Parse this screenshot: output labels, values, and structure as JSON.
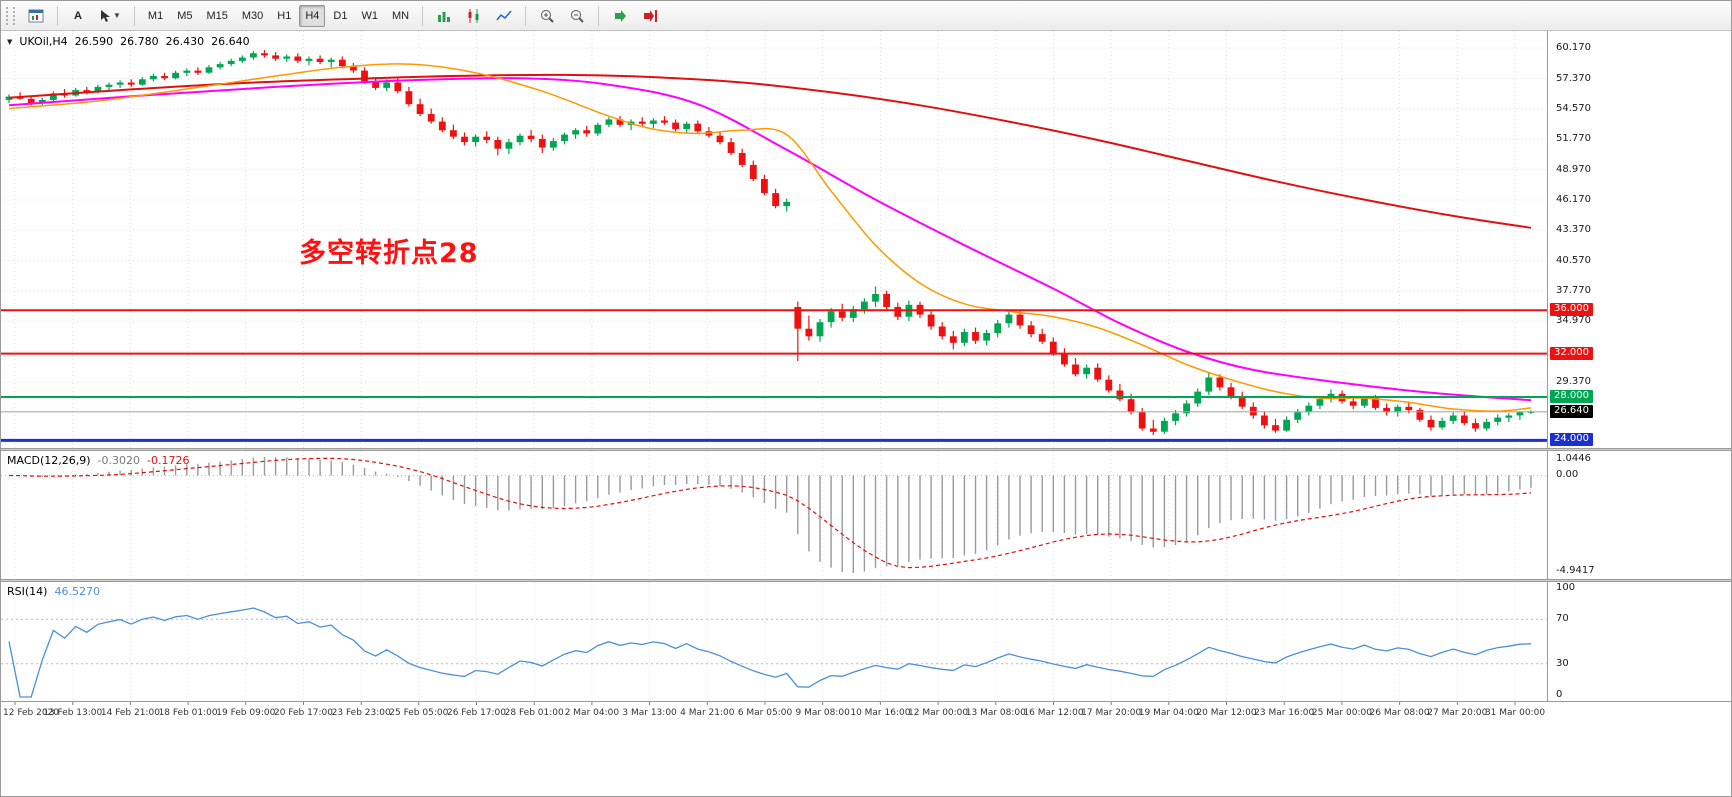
{
  "toolbar": {
    "text_tool": "A",
    "timeframes": [
      "M1",
      "M5",
      "M15",
      "M30",
      "H1",
      "H4",
      "D1",
      "W1",
      "MN"
    ],
    "active_timeframe": "H4"
  },
  "chart_data": {
    "type": "candlestick",
    "symbol_label": "UKOil,H4",
    "ohlc_label": {
      "open": "26.590",
      "high": "26.780",
      "low": "26.430",
      "close": "26.640"
    },
    "annotation": {
      "text": "多空转折点28",
      "color": "#ff1111"
    },
    "up_color": "#00a651",
    "down_color": "#ee1111",
    "y_axis": {
      "min": 23.3,
      "max": 61.75,
      "tick_step": 2.8,
      "ticks": [
        60.17,
        57.37,
        54.57,
        51.77,
        48.97,
        46.17,
        43.37,
        40.57,
        37.77,
        34.97,
        32.17,
        29.37,
        26.57,
        23.77
      ]
    },
    "levels": [
      {
        "price": 36.0,
        "label": "36.000",
        "color": "#ee1111",
        "width": 2
      },
      {
        "price": 32.0,
        "label": "32.000",
        "color": "#ee1111",
        "width": 2
      },
      {
        "price": 28.0,
        "label": "28.000",
        "color": "#00a651",
        "width": 2
      },
      {
        "price": 24.0,
        "label": "24.000",
        "color": "#1c2fd0",
        "width": 3
      }
    ],
    "bid": {
      "price": 26.64,
      "label": "26.640",
      "line_color": "#a8a8a8",
      "label_bg": "#000000"
    },
    "moving_averages": [
      {
        "name": "ma-slow-red",
        "color": "#e01010",
        "width": 2,
        "points": [
          [
            0,
            55.6
          ],
          [
            10,
            56.3
          ],
          [
            20,
            56.9
          ],
          [
            30,
            57.3
          ],
          [
            40,
            57.6
          ],
          [
            50,
            57.7
          ],
          [
            58,
            57.5
          ],
          [
            66,
            57.0
          ],
          [
            74,
            56.1
          ],
          [
            82,
            54.9
          ],
          [
            90,
            53.4
          ],
          [
            98,
            51.7
          ],
          [
            106,
            49.8
          ],
          [
            114,
            47.9
          ],
          [
            122,
            46.2
          ],
          [
            130,
            44.7
          ],
          [
            137,
            43.6
          ]
        ]
      },
      {
        "name": "ma-medium-magenta",
        "color": "#ff00ff",
        "width": 2,
        "points": [
          [
            0,
            54.9
          ],
          [
            12,
            55.8
          ],
          [
            24,
            56.6
          ],
          [
            36,
            57.2
          ],
          [
            46,
            57.4
          ],
          [
            54,
            56.8
          ],
          [
            62,
            55.0
          ],
          [
            70,
            50.8
          ],
          [
            78,
            46.2
          ],
          [
            86,
            42.0
          ],
          [
            94,
            38.0
          ],
          [
            100,
            34.8
          ],
          [
            106,
            32.2
          ],
          [
            112,
            30.5
          ],
          [
            120,
            29.3
          ],
          [
            128,
            28.4
          ],
          [
            137,
            27.7
          ]
        ]
      },
      {
        "name": "ma-fast-orange",
        "color": "#ff9900",
        "width": 1.5,
        "points": [
          [
            0,
            54.6
          ],
          [
            8,
            55.3
          ],
          [
            16,
            56.4
          ],
          [
            24,
            57.6
          ],
          [
            30,
            58.4
          ],
          [
            36,
            58.7
          ],
          [
            42,
            57.9
          ],
          [
            48,
            56.2
          ],
          [
            54,
            53.9
          ],
          [
            58,
            52.7
          ],
          [
            62,
            52.3
          ],
          [
            66,
            52.6
          ],
          [
            70,
            52.2
          ],
          [
            74,
            47.0
          ],
          [
            78,
            42.0
          ],
          [
            82,
            38.5
          ],
          [
            86,
            36.6
          ],
          [
            90,
            35.9
          ],
          [
            94,
            35.4
          ],
          [
            98,
            34.4
          ],
          [
            102,
            32.8
          ],
          [
            106,
            31.0
          ],
          [
            110,
            29.6
          ],
          [
            114,
            28.5
          ],
          [
            118,
            27.9
          ],
          [
            122,
            27.9
          ],
          [
            126,
            27.5
          ],
          [
            130,
            26.9
          ],
          [
            134,
            26.7
          ],
          [
            137,
            27.0
          ]
        ]
      }
    ],
    "candles": [
      [
        55.4,
        55.9,
        55.1,
        55.7
      ],
      [
        55.7,
        56.1,
        55.4,
        55.5
      ],
      [
        55.5,
        55.8,
        54.9,
        55.1
      ],
      [
        55.1,
        55.6,
        54.8,
        55.4
      ],
      [
        55.4,
        56.2,
        55.2,
        56.0
      ],
      [
        56.0,
        56.4,
        55.6,
        55.8
      ],
      [
        55.8,
        56.5,
        55.7,
        56.3
      ],
      [
        56.3,
        56.6,
        55.9,
        56.1
      ],
      [
        56.1,
        56.8,
        56.0,
        56.6
      ],
      [
        56.6,
        57.0,
        56.3,
        56.8
      ],
      [
        56.8,
        57.2,
        56.5,
        57.0
      ],
      [
        57.0,
        57.3,
        56.6,
        56.8
      ],
      [
        56.8,
        57.5,
        56.7,
        57.3
      ],
      [
        57.3,
        57.8,
        57.1,
        57.6
      ],
      [
        57.6,
        57.9,
        57.2,
        57.4
      ],
      [
        57.4,
        58.1,
        57.3,
        57.9
      ],
      [
        57.9,
        58.3,
        57.6,
        58.1
      ],
      [
        58.1,
        58.4,
        57.7,
        57.9
      ],
      [
        57.9,
        58.6,
        57.8,
        58.4
      ],
      [
        58.4,
        58.9,
        58.2,
        58.7
      ],
      [
        58.7,
        59.2,
        58.5,
        59.0
      ],
      [
        59.0,
        59.5,
        58.8,
        59.3
      ],
      [
        59.3,
        59.9,
        59.1,
        59.7
      ],
      [
        59.7,
        60.0,
        59.3,
        59.5
      ],
      [
        59.5,
        59.8,
        59.0,
        59.2
      ],
      [
        59.2,
        59.6,
        58.9,
        59.4
      ],
      [
        59.4,
        59.7,
        58.8,
        59.0
      ],
      [
        59.0,
        59.4,
        58.6,
        59.2
      ],
      [
        59.2,
        59.5,
        58.7,
        58.9
      ],
      [
        58.9,
        59.3,
        58.4,
        59.1
      ],
      [
        59.1,
        59.4,
        58.3,
        58.5
      ],
      [
        58.5,
        58.8,
        57.9,
        58.1
      ],
      [
        58.1,
        58.4,
        56.9,
        57.1
      ],
      [
        57.1,
        57.5,
        56.3,
        56.5
      ],
      [
        56.5,
        57.3,
        56.2,
        57.0
      ],
      [
        57.0,
        57.4,
        56.0,
        56.2
      ],
      [
        56.2,
        56.6,
        54.8,
        55.0
      ],
      [
        55.0,
        55.5,
        53.9,
        54.1
      ],
      [
        54.1,
        54.6,
        53.2,
        53.4
      ],
      [
        53.4,
        53.8,
        52.4,
        52.6
      ],
      [
        52.6,
        53.1,
        51.8,
        52.0
      ],
      [
        52.0,
        52.4,
        51.2,
        51.5
      ],
      [
        51.5,
        52.2,
        51.1,
        52.0
      ],
      [
        52.0,
        52.5,
        51.4,
        51.7
      ],
      [
        51.7,
        52.0,
        50.3,
        50.9
      ],
      [
        50.9,
        51.8,
        50.4,
        51.5
      ],
      [
        51.5,
        52.3,
        51.2,
        52.1
      ],
      [
        52.1,
        52.6,
        51.5,
        51.8
      ],
      [
        51.8,
        52.2,
        50.5,
        51.0
      ],
      [
        51.0,
        51.9,
        50.7,
        51.6
      ],
      [
        51.6,
        52.4,
        51.3,
        52.2
      ],
      [
        52.2,
        52.8,
        51.8,
        52.6
      ],
      [
        52.6,
        53.0,
        52.0,
        52.3
      ],
      [
        52.3,
        53.3,
        52.1,
        53.1
      ],
      [
        53.1,
        53.8,
        52.9,
        53.6
      ],
      [
        53.6,
        53.9,
        52.9,
        53.1
      ],
      [
        53.1,
        53.6,
        52.6,
        53.4
      ],
      [
        53.4,
        53.8,
        53.0,
        53.2
      ],
      [
        53.2,
        53.7,
        52.8,
        53.5
      ],
      [
        53.5,
        53.9,
        53.1,
        53.3
      ],
      [
        53.3,
        53.6,
        52.5,
        52.7
      ],
      [
        52.7,
        53.4,
        52.4,
        53.2
      ],
      [
        53.2,
        53.5,
        52.3,
        52.5
      ],
      [
        52.5,
        52.9,
        51.9,
        52.1
      ],
      [
        52.1,
        52.5,
        51.3,
        51.5
      ],
      [
        51.5,
        51.9,
        50.3,
        50.5
      ],
      [
        50.5,
        50.9,
        49.2,
        49.4
      ],
      [
        49.4,
        49.8,
        47.9,
        48.1
      ],
      [
        48.1,
        48.5,
        46.6,
        46.8
      ],
      [
        46.8,
        47.2,
        45.4,
        45.6
      ],
      [
        45.6,
        46.3,
        45.1,
        46.0
      ],
      [
        36.3,
        36.8,
        31.3,
        34.3
      ],
      [
        34.3,
        35.5,
        33.2,
        33.6
      ],
      [
        33.6,
        35.2,
        33.1,
        34.9
      ],
      [
        34.9,
        36.2,
        34.4,
        35.9
      ],
      [
        35.9,
        36.6,
        35.0,
        35.3
      ],
      [
        35.3,
        36.4,
        34.9,
        36.1
      ],
      [
        36.1,
        37.1,
        35.7,
        36.8
      ],
      [
        36.8,
        38.2,
        36.3,
        37.5
      ],
      [
        37.5,
        37.8,
        36.0,
        36.3
      ],
      [
        36.3,
        36.7,
        35.1,
        35.4
      ],
      [
        35.4,
        36.9,
        35.0,
        36.5
      ],
      [
        36.5,
        36.8,
        35.3,
        35.6
      ],
      [
        35.6,
        35.9,
        34.2,
        34.5
      ],
      [
        34.5,
        34.9,
        33.3,
        33.6
      ],
      [
        33.6,
        34.1,
        32.4,
        33.0
      ],
      [
        33.0,
        34.3,
        32.7,
        34.0
      ],
      [
        34.0,
        34.4,
        32.9,
        33.2
      ],
      [
        33.2,
        34.2,
        32.8,
        33.9
      ],
      [
        33.9,
        35.1,
        33.5,
        34.8
      ],
      [
        34.8,
        36.0,
        34.4,
        35.6
      ],
      [
        35.6,
        35.9,
        34.3,
        34.6
      ],
      [
        34.6,
        35.0,
        33.5,
        33.8
      ],
      [
        33.8,
        34.3,
        32.9,
        33.1
      ],
      [
        33.1,
        33.5,
        31.8,
        32.0
      ],
      [
        32.0,
        32.5,
        30.8,
        31.0
      ],
      [
        31.0,
        31.6,
        29.9,
        30.1
      ],
      [
        30.1,
        31.0,
        29.7,
        30.7
      ],
      [
        30.7,
        31.1,
        29.4,
        29.6
      ],
      [
        29.6,
        30.0,
        28.4,
        28.6
      ],
      [
        28.6,
        29.2,
        27.6,
        27.8
      ],
      [
        27.8,
        28.3,
        26.4,
        26.6
      ],
      [
        26.6,
        27.0,
        24.9,
        25.1
      ],
      [
        25.1,
        25.9,
        24.5,
        24.8
      ],
      [
        24.8,
        26.1,
        24.6,
        25.8
      ],
      [
        25.8,
        26.8,
        25.4,
        26.5
      ],
      [
        26.5,
        27.7,
        26.2,
        27.4
      ],
      [
        27.4,
        28.8,
        27.1,
        28.5
      ],
      [
        28.5,
        30.3,
        28.2,
        29.8
      ],
      [
        29.8,
        30.1,
        28.6,
        28.9
      ],
      [
        28.9,
        29.3,
        27.8,
        28.1
      ],
      [
        28.1,
        28.5,
        26.9,
        27.1
      ],
      [
        27.1,
        27.5,
        26.0,
        26.3
      ],
      [
        26.3,
        26.7,
        25.1,
        25.4
      ],
      [
        25.4,
        26.0,
        24.7,
        24.9
      ],
      [
        24.9,
        26.2,
        24.8,
        25.9
      ],
      [
        25.9,
        26.9,
        25.6,
        26.6
      ],
      [
        26.6,
        27.5,
        26.3,
        27.2
      ],
      [
        27.2,
        28.0,
        26.9,
        27.8
      ],
      [
        27.8,
        28.7,
        27.5,
        28.3
      ],
      [
        28.3,
        28.6,
        27.4,
        27.6
      ],
      [
        27.6,
        28.0,
        26.9,
        27.2
      ],
      [
        27.2,
        28.1,
        27.0,
        27.9
      ],
      [
        27.9,
        28.2,
        26.8,
        27.0
      ],
      [
        27.0,
        27.4,
        26.3,
        26.6
      ],
      [
        26.6,
        27.3,
        26.2,
        27.1
      ],
      [
        27.1,
        27.6,
        26.5,
        26.8
      ],
      [
        26.8,
        27.0,
        25.7,
        25.9
      ],
      [
        25.9,
        26.3,
        24.9,
        25.2
      ],
      [
        25.2,
        26.1,
        25.0,
        25.8
      ],
      [
        25.8,
        26.6,
        25.5,
        26.3
      ],
      [
        26.3,
        26.7,
        25.4,
        25.6
      ],
      [
        25.6,
        26.0,
        24.8,
        25.1
      ],
      [
        25.1,
        26.0,
        24.9,
        25.7
      ],
      [
        25.7,
        26.4,
        25.4,
        26.1
      ],
      [
        26.1,
        26.5,
        25.7,
        26.3
      ],
      [
        26.3,
        26.7,
        25.9,
        26.59
      ],
      [
        26.59,
        26.78,
        26.43,
        26.64
      ]
    ],
    "macd": {
      "label": "MACD(12,26,9)",
      "value_main": "-0.3020",
      "value_signal": "-0.1726",
      "params": {
        "fast": 12,
        "slow": 26,
        "signal": 9
      },
      "scale_labels": {
        "top": "1.0446",
        "zero": "0.00",
        "bottom": "-4.9417"
      },
      "histogram_color": "#9a9a9a",
      "signal_color": "#dd1111"
    },
    "rsi": {
      "label": "RSI(14)",
      "period": 14,
      "value": "46.5270",
      "line_color": "#4a90d9",
      "levels": [
        70,
        30
      ],
      "scale_labels": [
        {
          "value": 100,
          "text": "100"
        },
        {
          "value": 70,
          "text": "70"
        },
        {
          "value": 30,
          "text": "30"
        },
        {
          "value": 0,
          "text": "0"
        }
      ]
    },
    "x_axis_labels": [
      "12 Feb 2020",
      "13 Feb 13:00",
      "14 Feb 21:00",
      "18 Feb 01:00",
      "19 Feb 09:00",
      "20 Feb 17:00",
      "23 Feb 23:00",
      "25 Feb 05:00",
      "26 Feb 17:00",
      "28 Feb 01:00",
      "2 Mar 04:00",
      "3 Mar 13:00",
      "4 Mar 21:00",
      "6 Mar 05:00",
      "9 Mar 08:00",
      "10 Mar 16:00",
      "12 Mar 00:00",
      "13 Mar 08:00",
      "16 Mar 12:00",
      "17 Mar 20:00",
      "19 Mar 04:00",
      "20 Mar 12:00",
      "23 Mar 16:00",
      "25 Mar 00:00",
      "26 Mar 08:00",
      "27 Mar 20:00",
      "31 Mar 00:00"
    ]
  }
}
